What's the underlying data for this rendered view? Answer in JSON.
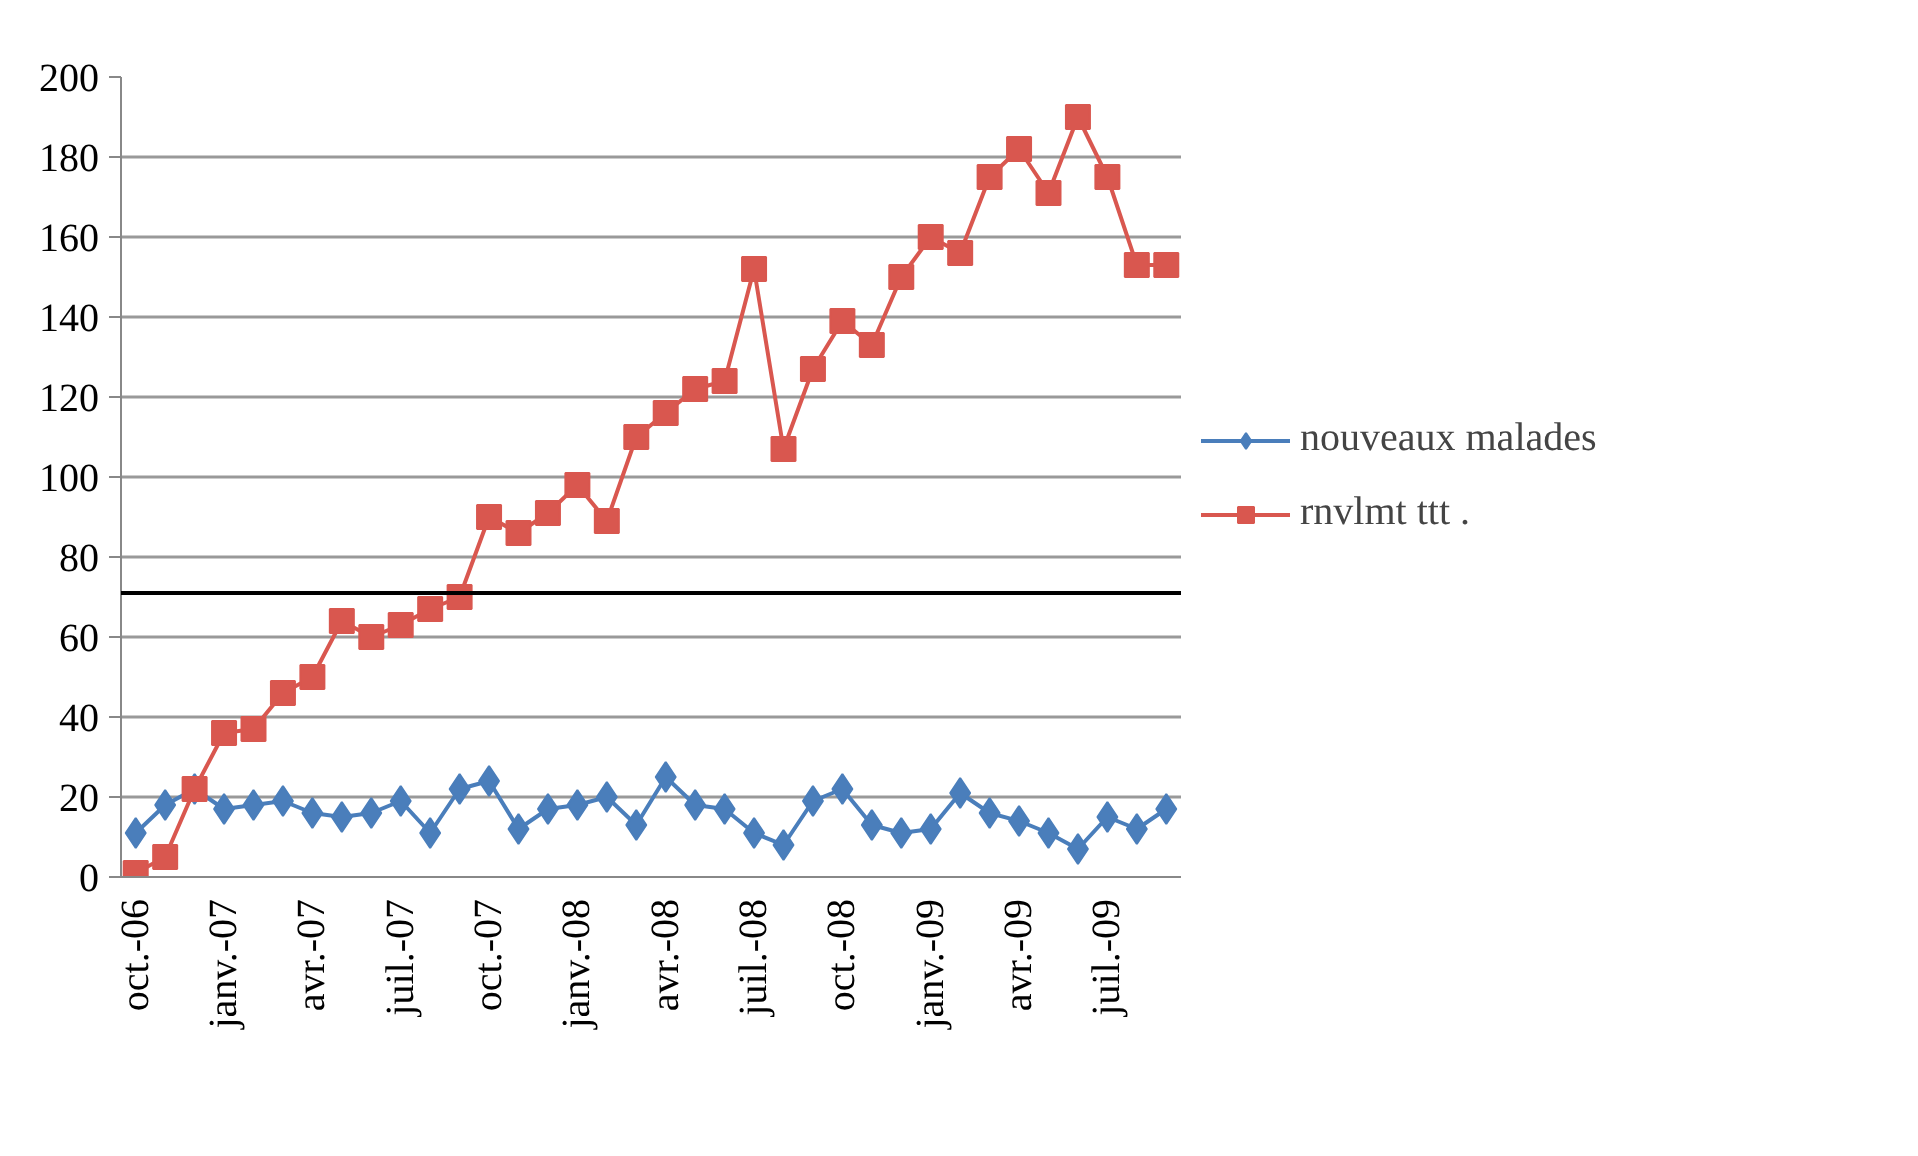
{
  "chart_data": {
    "type": "line",
    "categories": [
      "oct.-06",
      null,
      null,
      "janv.-07",
      null,
      null,
      "avr.-07",
      null,
      null,
      "juil.-07",
      null,
      null,
      "oct.-07",
      null,
      null,
      "janv.-08",
      null,
      null,
      "avr.-08",
      null,
      null,
      "juil.-08",
      null,
      null,
      "oct.-08",
      null,
      null,
      "janv.-09",
      null,
      null,
      "avr.-09",
      null,
      null,
      "juil.-09",
      null,
      null
    ],
    "series": [
      {
        "name": "nouveaux malades",
        "color": "#4a7ebb",
        "marker": "diamond",
        "values": [
          11,
          18,
          22,
          17,
          18,
          19,
          16,
          15,
          16,
          19,
          11,
          22,
          24,
          12,
          17,
          18,
          20,
          13,
          25,
          18,
          17,
          11,
          8,
          19,
          22,
          13,
          11,
          12,
          21,
          16,
          14,
          11,
          7,
          15,
          12,
          17
        ]
      },
      {
        "name": "rnvlmt ttt .",
        "color": "#d9574f",
        "marker": "square",
        "values": [
          1,
          5,
          22,
          36,
          37,
          46,
          50,
          64,
          60,
          63,
          67,
          70,
          90,
          86,
          91,
          98,
          89,
          110,
          116,
          122,
          124,
          152,
          107,
          127,
          139,
          133,
          150,
          160,
          156,
          175,
          182,
          171,
          190,
          175,
          153,
          153
        ]
      }
    ],
    "ylim": [
      0,
      200
    ],
    "yticks": [
      0,
      20,
      40,
      60,
      80,
      100,
      120,
      140,
      160,
      180,
      200
    ],
    "grid": "y",
    "legend": "right",
    "ref_lines": [
      {
        "axis": "y",
        "value": 71,
        "color": "#000000"
      }
    ]
  }
}
